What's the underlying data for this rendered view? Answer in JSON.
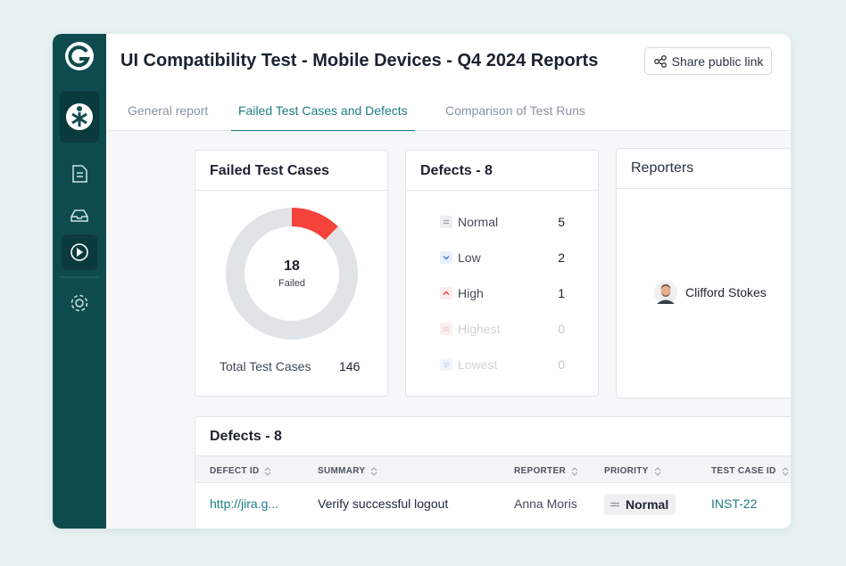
{
  "header": {
    "title": "UI Compatibility Test - Mobile Devices - Q4 2024 Reports",
    "share_button": "Share public link"
  },
  "tabs": [
    "General report",
    "Failed Test Cases and Defects",
    "Comparison of Test Runs"
  ],
  "active_tab": 1,
  "failed_test_cases": {
    "title": "Failed Test Cases",
    "failed": 18,
    "failed_label": "Failed",
    "total_label": "Total Test Cases",
    "total": 146
  },
  "defects_summary": {
    "title": "Defects - 8",
    "items": [
      {
        "priority": "Normal",
        "count": 5
      },
      {
        "priority": "Low",
        "count": 2
      },
      {
        "priority": "High",
        "count": 1
      },
      {
        "priority": "Highest",
        "count": 0
      },
      {
        "priority": "Lowest",
        "count": 0
      }
    ]
  },
  "reporters": {
    "title": "Reporters",
    "people": [
      "Clifford Stokes"
    ]
  },
  "defects_table": {
    "title": "Defects - 8",
    "columns": [
      "DEFECT ID",
      "SUMMARY",
      "REPORTER",
      "PRIORITY",
      "TEST CASE ID"
    ],
    "rows": [
      [
        "http://jira.g...",
        "Verify successful logout",
        "Anna Moris",
        "Normal",
        "INST-22"
      ]
    ]
  }
}
